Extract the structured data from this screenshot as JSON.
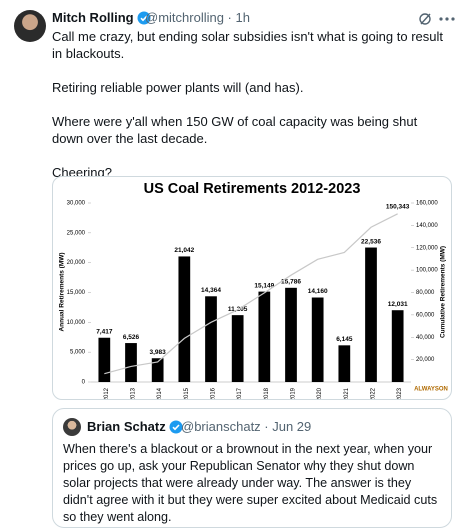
{
  "tweet": {
    "author": "Mitch Rolling",
    "handle_time": "@mitchrolling · 1h",
    "paragraphs": [
      "Call me crazy, but ending solar subsidies isn't what is going to result in blackouts.",
      "Retiring reliable power plants will (and has).",
      "Where were y'all when 150 GW of coal capacity was being shut down over the last decade.",
      "Cheering?"
    ]
  },
  "chart_data": {
    "type": "bar",
    "title": "US Coal Retirements 2012-2023",
    "categories": [
      "2012",
      "2013",
      "2014",
      "2015",
      "2016",
      "2017",
      "2018",
      "2019",
      "2020",
      "2021",
      "2022",
      "2023"
    ],
    "series": [
      {
        "name": "Annual Retirements (MW)",
        "type": "bar",
        "color": "#000000",
        "values": [
          7417,
          6526,
          3983,
          21042,
          14364,
          11205,
          15149,
          15786,
          14160,
          6145,
          22536,
          12031
        ],
        "value_labels": [
          "7,417",
          "6,526",
          "3,983",
          "21,042",
          "14,364",
          "11,205",
          "15,149",
          "15,786",
          "14,160",
          "6,145",
          "22,536",
          "12,031"
        ]
      },
      {
        "name": "Cumulative Retirements (MW)",
        "type": "line",
        "axis": "y2",
        "color": "#c8c8c8",
        "values": [
          7417,
          13943,
          17926,
          38968,
          53332,
          64537,
          79686,
          95472,
          109632,
          115777,
          138313,
          150343
        ],
        "value_labels": [
          null,
          null,
          null,
          null,
          null,
          null,
          null,
          null,
          null,
          null,
          null,
          "150,343"
        ]
      }
    ],
    "y_label": "Annual Retirements (MW)",
    "y2_label": "Cumulative Retirements (MW)",
    "ylim": [
      0,
      30000
    ],
    "yticks": [
      0,
      {
        "value": 5000,
        "label": "5,000"
      },
      {
        "value": 10000,
        "label": "10,000"
      },
      {
        "value": 15000,
        "label": "15,000"
      },
      {
        "value": 20000,
        "label": "20,000"
      },
      {
        "value": 25000,
        "label": "25,000"
      },
      {
        "value": 30000,
        "label": "30,000"
      }
    ],
    "y2lim": [
      0,
      160000
    ],
    "y2ticks": [
      {
        "value": 20000,
        "label": "20,000"
      },
      {
        "value": 40000,
        "label": "40,000"
      },
      {
        "value": 60000,
        "label": "60,000"
      },
      {
        "value": 80000,
        "label": "80,000"
      },
      {
        "value": 100000,
        "label": "100,000"
      },
      {
        "value": 120000,
        "label": "120,000"
      },
      {
        "value": 140000,
        "label": "140,000"
      },
      {
        "value": 160000,
        "label": "160,000"
      }
    ],
    "logo": "ALWAYSON"
  },
  "quote": {
    "author": "Brian Schatz",
    "handle_time": "@brianschatz · Jun 29",
    "text": "When there's a blackout or a brownout in the next year, when your prices go up, ask your Republican Senator why they shut down solar projects that were already under way. The answer is they didn't agree with it but they were super excited about Medicaid cuts so they went along."
  }
}
